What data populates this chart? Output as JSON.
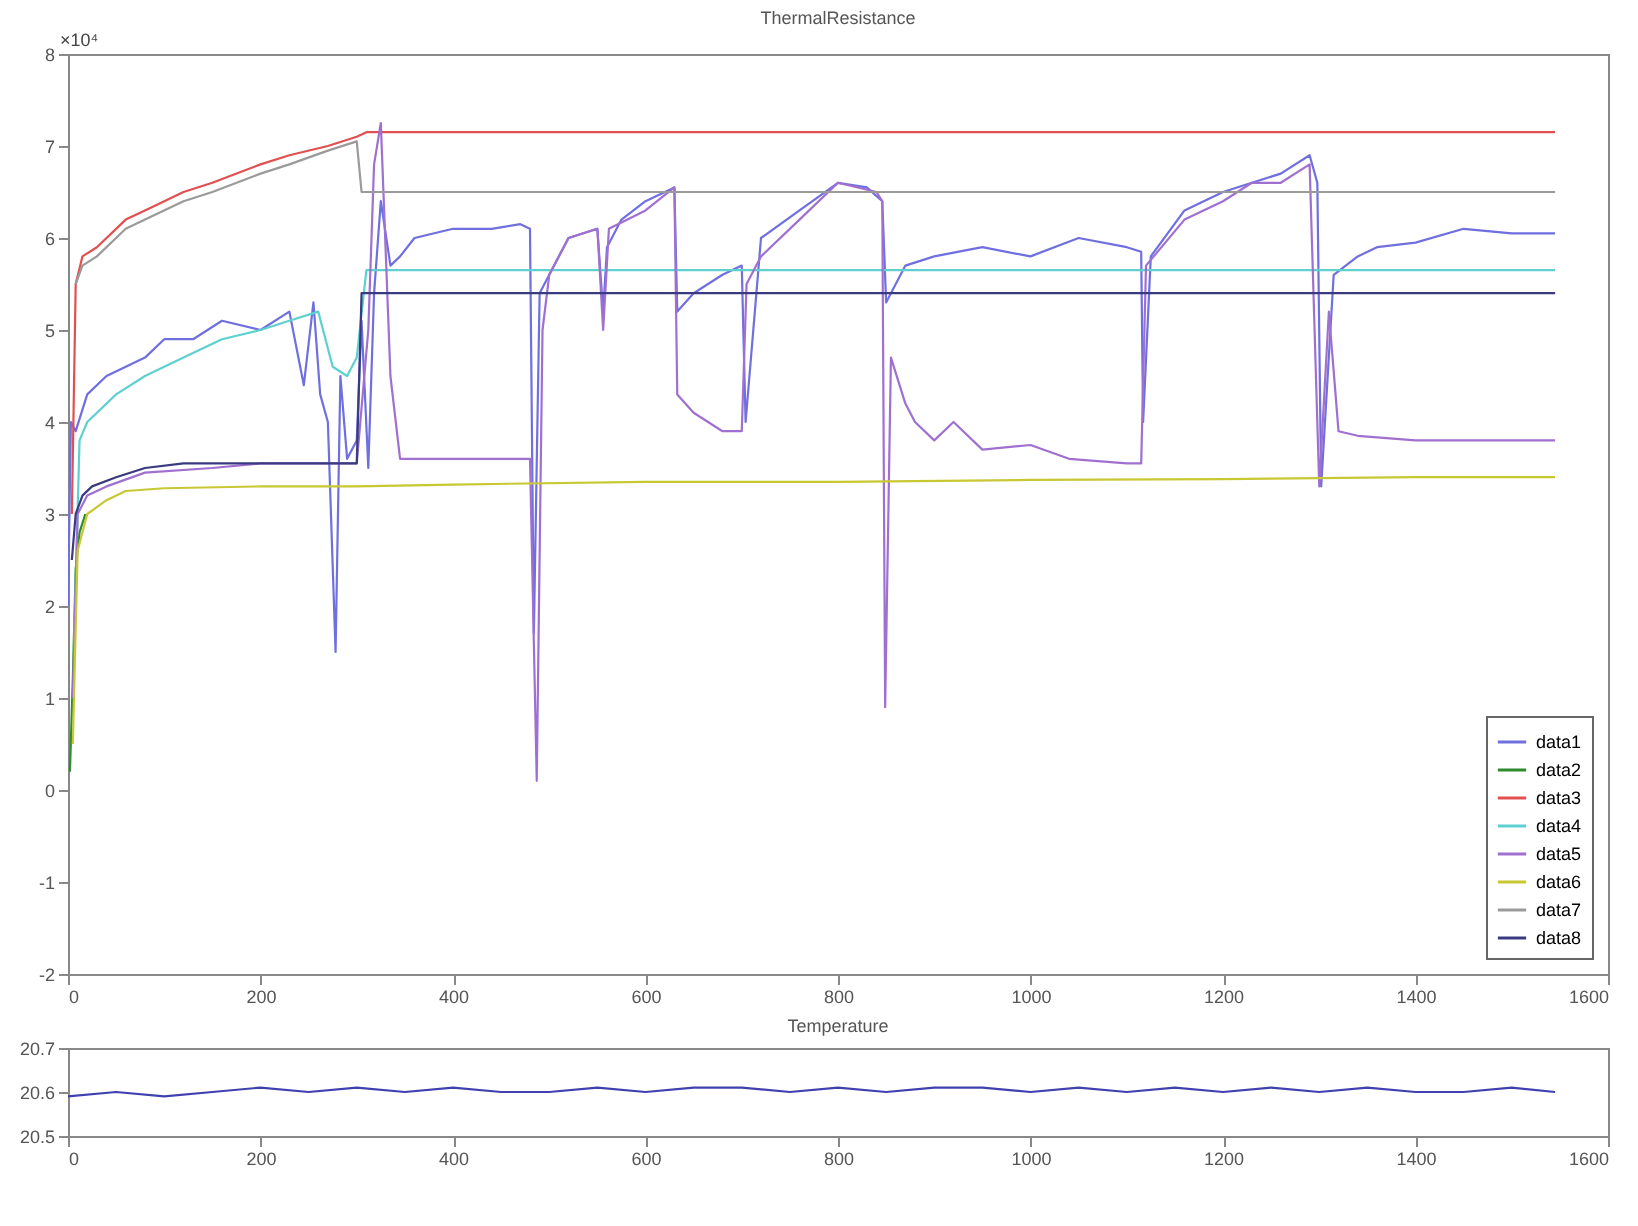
{
  "chart_data": [
    {
      "type": "line",
      "title": "ThermalResistance",
      "annotations": [
        "×10⁴"
      ],
      "legend": "bottom right",
      "xlim": [
        0,
        1600
      ],
      "xticks": [
        0,
        200,
        400,
        600,
        800,
        1000,
        1200,
        1400,
        1600
      ],
      "ylim": [
        -2,
        8
      ],
      "yticks": [
        -2,
        -1,
        0,
        1,
        2,
        3,
        4,
        5,
        6,
        7,
        8
      ],
      "series": [
        {
          "name": "data1",
          "color": "#6f6fe0",
          "x": [
            0,
            3,
            8,
            20,
            40,
            60,
            80,
            100,
            130,
            160,
            200,
            230,
            245,
            255,
            262,
            270,
            278,
            283,
            290,
            300,
            305,
            312,
            318,
            325,
            335,
            345,
            360,
            400,
            440,
            470,
            480,
            484,
            490,
            500,
            520,
            550,
            556,
            560,
            575,
            600,
            630,
            633,
            650,
            680,
            700,
            704,
            720,
            760,
            800,
            830,
            846,
            850,
            870,
            900,
            950,
            1000,
            1050,
            1100,
            1115,
            1117,
            1125,
            1160,
            1200,
            1230,
            1260,
            1290,
            1298,
            1302,
            1315,
            1340,
            1360,
            1400,
            1450,
            1500,
            1545
          ],
          "values": [
            2.0,
            4.0,
            3.9,
            4.3,
            4.5,
            4.6,
            4.7,
            4.9,
            4.9,
            5.1,
            5.0,
            5.2,
            4.4,
            5.3,
            4.3,
            4.0,
            1.5,
            4.5,
            3.6,
            3.8,
            5.1,
            3.5,
            5.4,
            6.4,
            5.7,
            5.8,
            6.0,
            6.1,
            6.1,
            6.15,
            6.1,
            1.7,
            5.4,
            5.6,
            6.0,
            6.1,
            5.2,
            5.9,
            6.2,
            6.4,
            6.55,
            5.2,
            5.4,
            5.6,
            5.7,
            4.0,
            6.0,
            6.3,
            6.6,
            6.55,
            6.4,
            5.3,
            5.7,
            5.8,
            5.9,
            5.8,
            6.0,
            5.9,
            5.85,
            4.0,
            5.8,
            6.3,
            6.5,
            6.6,
            6.7,
            6.9,
            6.6,
            3.3,
            5.6,
            5.8,
            5.9,
            5.95,
            6.1,
            6.05,
            6.05
          ]
        },
        {
          "name": "data2",
          "color": "#2e8b2e",
          "x": [
            2,
            5,
            8,
            12,
            18
          ],
          "values": [
            0.2,
            1.2,
            2.4,
            2.8,
            3.0
          ]
        },
        {
          "name": "data3",
          "color": "#e05050",
          "x": [
            4,
            8,
            15,
            30,
            60,
            80,
            120,
            150,
            200,
            230,
            270,
            300,
            310,
            600,
            1000,
            1545
          ],
          "values": [
            3.0,
            5.5,
            5.8,
            5.9,
            6.2,
            6.3,
            6.5,
            6.6,
            6.8,
            6.9,
            7.0,
            7.1,
            7.15,
            7.15,
            7.15,
            7.15
          ]
        },
        {
          "name": "data4",
          "color": "#5fd0d0",
          "x": [
            6,
            12,
            20,
            50,
            80,
            120,
            160,
            200,
            230,
            260,
            275,
            290,
            300,
            310,
            700,
            1545
          ],
          "values": [
            1.5,
            3.8,
            4.0,
            4.3,
            4.5,
            4.7,
            4.9,
            5.0,
            5.1,
            5.2,
            4.6,
            4.5,
            4.7,
            5.65,
            5.65,
            5.65
          ]
        },
        {
          "name": "data5",
          "color": "#a070d0",
          "x": [
            5,
            10,
            20,
            40,
            80,
            150,
            200,
            250,
            300,
            312,
            318,
            325,
            335,
            345,
            400,
            480,
            487,
            493,
            500,
            520,
            550,
            556,
            562,
            600,
            630,
            633,
            650,
            680,
            700,
            705,
            720,
            760,
            800,
            840,
            846,
            849,
            855,
            870,
            880,
            900,
            920,
            950,
            1000,
            1040,
            1100,
            1115,
            1120,
            1160,
            1200,
            1230,
            1260,
            1290,
            1300,
            1310,
            1320,
            1340,
            1400,
            1500,
            1545
          ],
          "values": [
            1.0,
            3.0,
            3.2,
            3.3,
            3.45,
            3.5,
            3.55,
            3.55,
            3.55,
            5.0,
            6.8,
            7.25,
            4.5,
            3.6,
            3.6,
            3.6,
            0.1,
            5.0,
            5.6,
            6.0,
            6.1,
            5.0,
            6.1,
            6.3,
            6.55,
            4.3,
            4.1,
            3.9,
            3.9,
            5.5,
            5.8,
            6.2,
            6.6,
            6.5,
            6.4,
            0.9,
            4.7,
            4.2,
            4.0,
            3.8,
            4.0,
            3.7,
            3.75,
            3.6,
            3.55,
            3.55,
            5.7,
            6.2,
            6.4,
            6.6,
            6.6,
            6.8,
            3.3,
            5.2,
            3.9,
            3.85,
            3.8,
            3.8,
            3.8
          ]
        },
        {
          "name": "data6",
          "color": "#c8c832",
          "x": [
            5,
            10,
            20,
            40,
            60,
            100,
            200,
            300,
            400,
            600,
            800,
            1000,
            1200,
            1400,
            1545
          ],
          "values": [
            0.5,
            2.6,
            3.0,
            3.15,
            3.25,
            3.28,
            3.3,
            3.3,
            3.32,
            3.35,
            3.35,
            3.37,
            3.38,
            3.4,
            3.4
          ]
        },
        {
          "name": "data7",
          "color": "#9a9a9a",
          "x": [
            8,
            15,
            30,
            60,
            80,
            120,
            150,
            200,
            230,
            270,
            300,
            305,
            600,
            1000,
            1545
          ],
          "values": [
            5.5,
            5.7,
            5.8,
            6.1,
            6.2,
            6.4,
            6.5,
            6.7,
            6.8,
            6.95,
            7.05,
            6.5,
            6.5,
            6.5,
            6.5
          ]
        },
        {
          "name": "data8",
          "color": "#3a3a80",
          "x": [
            4,
            8,
            15,
            25,
            50,
            80,
            120,
            200,
            250,
            300,
            305,
            600,
            1000,
            1545
          ],
          "values": [
            2.5,
            3.0,
            3.2,
            3.3,
            3.4,
            3.5,
            3.55,
            3.55,
            3.55,
            3.55,
            5.4,
            5.4,
            5.4,
            5.4
          ]
        }
      ]
    },
    {
      "type": "line",
      "title": "Temperature",
      "legend": false,
      "xlim": [
        0,
        1600
      ],
      "xticks": [
        0,
        200,
        400,
        600,
        800,
        1000,
        1200,
        1400,
        1600
      ],
      "ylim": [
        20.5,
        20.7
      ],
      "yticks": [
        20.5,
        20.6,
        20.7
      ],
      "series": [
        {
          "color": "#4040b0",
          "x": [
            0,
            50,
            100,
            150,
            200,
            250,
            300,
            350,
            400,
            450,
            500,
            550,
            600,
            650,
            700,
            750,
            800,
            850,
            900,
            950,
            1000,
            1050,
            1100,
            1150,
            1200,
            1250,
            1300,
            1350,
            1400,
            1450,
            1500,
            1545
          ],
          "values": [
            20.59,
            20.6,
            20.59,
            20.6,
            20.61,
            20.6,
            20.61,
            20.6,
            20.61,
            20.6,
            20.6,
            20.61,
            20.6,
            20.61,
            20.61,
            20.6,
            20.61,
            20.6,
            20.61,
            20.61,
            20.6,
            20.61,
            20.6,
            20.61,
            20.6,
            20.61,
            20.6,
            20.61,
            20.6,
            20.6,
            20.61,
            20.6
          ]
        }
      ]
    }
  ]
}
